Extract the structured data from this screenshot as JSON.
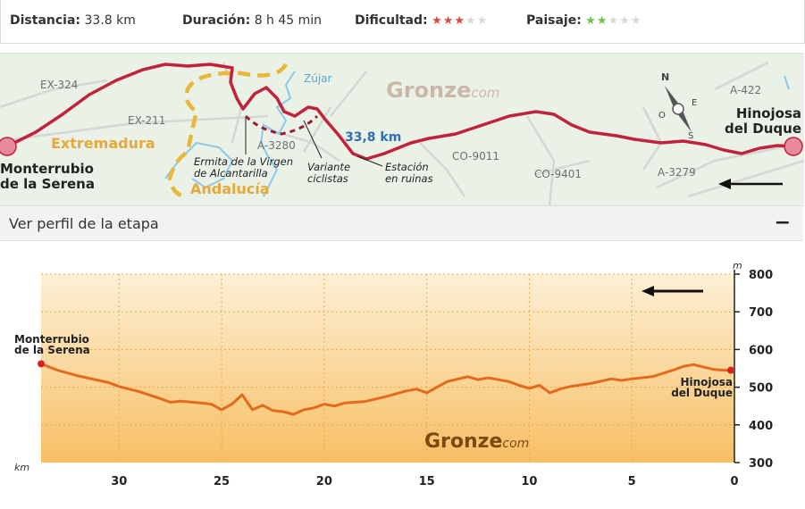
{
  "stats": {
    "distance": {
      "label": "Distancia:",
      "value": "33.8 km"
    },
    "duration": {
      "label": "Duración:",
      "value": "8 h 45 min"
    },
    "difficulty": {
      "label": "Dificultad:",
      "rating": 3,
      "max": 5,
      "color": "#e0463c"
    },
    "landscape": {
      "label": "Paisaje:",
      "rating": 2,
      "max": 5,
      "color": "#6cc24a"
    }
  },
  "map": {
    "roads": [
      "EX-324",
      "EX-211",
      "A-3280",
      "CO-9011",
      "CO-9401",
      "A-3279",
      "A-422"
    ],
    "river": "Zújar",
    "regions": [
      "Extremadura",
      "Andalucía"
    ],
    "start": "Monterrubio de la Serena",
    "start_lines": [
      "Monterrubio",
      "de la Serena"
    ],
    "end_lines": [
      "Hinojosa",
      "del Duque"
    ],
    "distance_label": "33,8 km",
    "poi": {
      "ermita": [
        "Ermita de la Virgen",
        "de Alcantarilla"
      ],
      "variante": [
        "Variante",
        "ciclistas"
      ],
      "estacion": [
        "Estación",
        "en ruinas"
      ]
    },
    "watermark": {
      "main": "Gronze",
      "suffix": "com"
    },
    "compass": {
      "n": "N",
      "o": "O",
      "e": "E",
      "s": "S"
    },
    "route_color": "#c0233b",
    "variant_color": "#a01a2e",
    "border_color": "#e8b83a"
  },
  "profile": {
    "header": "Ver perfil de la etapa",
    "collapse_symbol": "−",
    "unit_y": "m",
    "unit_x": "km",
    "start_lines": [
      "Monterrubio",
      "de la Serena"
    ],
    "end_lines": [
      "Hinojosa",
      "del Duque"
    ],
    "watermark": {
      "main": "Gronze",
      "suffix": "com"
    },
    "line_color": "#e46a1e"
  },
  "chart_data": {
    "type": "area",
    "xlabel": "km",
    "ylabel": "m",
    "xlim": [
      33.8,
      0
    ],
    "ylim": [
      300,
      800
    ],
    "x_ticks": [
      30,
      25,
      20,
      15,
      10,
      5,
      0
    ],
    "y_ticks": [
      300,
      400,
      500,
      600,
      700,
      800
    ],
    "grid": true,
    "x": [
      33.8,
      33,
      32,
      31,
      30.5,
      30,
      29,
      28,
      27.5,
      27,
      26,
      25.5,
      25,
      24.5,
      24,
      23.5,
      23,
      22.5,
      22,
      21.5,
      21,
      20.5,
      20,
      19.5,
      19,
      18,
      17,
      16,
      15.5,
      15,
      14.5,
      14,
      13,
      12.5,
      12,
      11,
      10.5,
      10,
      9.5,
      9,
      8.5,
      8,
      7,
      6,
      5.5,
      5,
      4,
      3,
      2.5,
      2,
      1,
      0.5,
      0
    ],
    "series": [
      {
        "values": [
          562,
          545,
          530,
          518,
          512,
          502,
          488,
          470,
          460,
          463,
          458,
          455,
          440,
          455,
          480,
          440,
          452,
          438,
          435,
          428,
          440,
          445,
          455,
          450,
          458,
          462,
          475,
          490,
          495,
          485,
          500,
          515,
          528,
          520,
          525,
          515,
          505,
          497,
          505,
          485,
          495,
          502,
          510,
          522,
          518,
          522,
          528,
          545,
          555,
          560,
          547,
          545,
          545
        ]
      }
    ]
  }
}
